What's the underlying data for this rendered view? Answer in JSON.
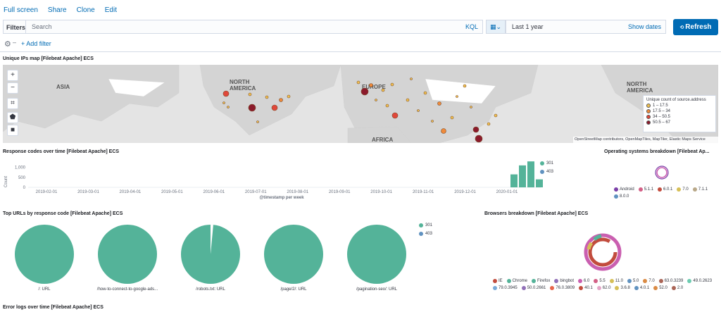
{
  "nav": {
    "full_screen": "Full screen",
    "share": "Share",
    "clone": "Clone",
    "edit": "Edit"
  },
  "query": {
    "filters_label": "Filters",
    "search_placeholder": "Search",
    "kql_label": "KQL",
    "date_value": "Last 1 year",
    "show_dates": "Show dates",
    "refresh_label": "Refresh",
    "add_filter": "+ Add filter"
  },
  "map_panel": {
    "title": "Unique IPs map [Filebeat Apache] ECS",
    "regions": [
      "ASIA",
      "NORTH\nAMERICA",
      "EUROPE",
      "AFRICA",
      "NORTH\nAMERICA"
    ],
    "legend_title": "Unique count of source.address",
    "legend_items": [
      {
        "label": "1 – 17.5",
        "color": "#f2c14e"
      },
      {
        "label": "17.5 – 34",
        "color": "#f08a3a"
      },
      {
        "label": "34 – 50.5",
        "color": "#e0473a"
      },
      {
        "label": "50.5 – 67",
        "color": "#8b1a2b"
      }
    ],
    "attribution": "OpenStreetMap contributors, OpenMapTiles, MapTiler, Elastic Maps Service"
  },
  "response_panel": {
    "title": "Response codes over time [Filebeat Apache] ECS",
    "y_label": "Count",
    "x_label": "@timestamp per week",
    "legend": [
      {
        "label": "301",
        "color": "#54b399"
      },
      {
        "label": "403",
        "color": "#6092c0"
      }
    ],
    "chart_data": {
      "type": "bar",
      "title": "Response codes over time [Filebeat Apache] ECS",
      "xlabel": "@timestamp per week",
      "ylabel": "Count",
      "ylim": [
        0,
        1200
      ],
      "y_ticks": [
        "0",
        "500",
        "1,000"
      ],
      "x_ticks": [
        "2019-02-01",
        "2019-03-01",
        "2019-04-01",
        "2019-05-01",
        "2019-06-01",
        "2019-07-01",
        "2019-08-01",
        "2019-09-01",
        "2019-10-01",
        "2019-11-01",
        "2019-12-01",
        "2020-01-01"
      ],
      "categories": [
        "2019-12-23",
        "2019-12-30",
        "2020-01-06",
        "2020-01-13"
      ],
      "series": [
        {
          "name": "301",
          "values": [
            650,
            1100,
            1300,
            400
          ]
        },
        {
          "name": "403",
          "values": [
            0,
            0,
            0,
            0
          ]
        }
      ]
    }
  },
  "os_panel": {
    "title": "Operating systems breakdown [Filebeat Ap...",
    "legend": [
      {
        "label": "Android",
        "color": "#7b3fa8"
      },
      {
        "label": "5.1.1",
        "color": "#d36086"
      },
      {
        "label": "6.0.1",
        "color": "#c24c3d"
      },
      {
        "label": "7.0",
        "color": "#d6bf57"
      },
      {
        "label": "7.1.1",
        "color": "#b9a888"
      },
      {
        "label": "8.0.0",
        "color": "#6092c0"
      }
    ]
  },
  "urls_panel": {
    "title": "Top URLs by response code [Filebeat Apache] ECS",
    "legend": [
      {
        "label": "301",
        "color": "#54b399"
      },
      {
        "label": "403",
        "color": "#6092c0"
      }
    ],
    "pies": [
      {
        "label": "/: URL",
        "share_301": 1.0
      },
      {
        "label": "/how-to-connect-to-google-ads...",
        "share_301": 1.0
      },
      {
        "label": "/robots.txt: URL",
        "share_301": 0.985
      },
      {
        "label": "/page/2/: URL",
        "share_301": 1.0
      },
      {
        "label": "/pagination-seo/: URL",
        "share_301": 1.0
      }
    ]
  },
  "browsers_panel": {
    "title": "Browsers breakdown [Filebeat Apache] ECS",
    "legend": [
      {
        "label": "IE",
        "color": "#c24c3d"
      },
      {
        "label": "Chrome",
        "color": "#54b399"
      },
      {
        "label": "Firefox",
        "color": "#54b399"
      },
      {
        "label": "bingbot",
        "color": "#9170b8"
      },
      {
        "label": "6.0",
        "color": "#ca5fb0"
      },
      {
        "label": "5.5",
        "color": "#d36086"
      },
      {
        "label": "11.0",
        "color": "#d6bf57"
      },
      {
        "label": "5.0",
        "color": "#6092c0"
      },
      {
        "label": "7.0",
        "color": "#da8b45"
      },
      {
        "label": "63.0.3239",
        "color": "#aa6556"
      },
      {
        "label": "49.0.2623",
        "color": "#6dccb1"
      },
      {
        "label": "79.0.3945",
        "color": "#79aad9"
      },
      {
        "label": "50.0.2661",
        "color": "#9170b8"
      },
      {
        "label": "76.0.3809",
        "color": "#e7664c"
      },
      {
        "label": "40.1",
        "color": "#c24c3d"
      },
      {
        "label": "62.0",
        "color": "#e4a6c7"
      },
      {
        "label": "3.6.8",
        "color": "#d6bf57"
      },
      {
        "label": "4.0.1",
        "color": "#6092c0"
      },
      {
        "label": "52.0",
        "color": "#da8b45"
      },
      {
        "label": "2.0",
        "color": "#aa6556"
      }
    ]
  },
  "error_panel": {
    "title": "Error logs over time [Filebeat Apache] ECS"
  }
}
